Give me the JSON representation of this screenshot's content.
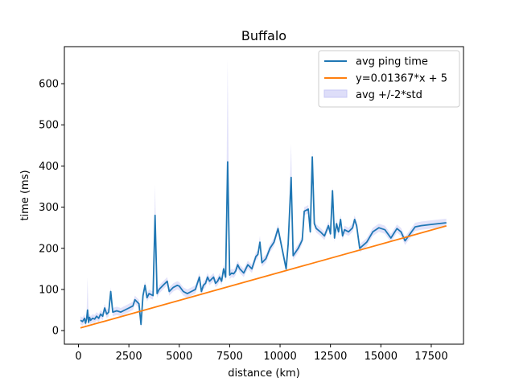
{
  "chart_data": {
    "type": "line",
    "title": "Buffalo",
    "xlabel": "distance (km)",
    "ylabel": "time (ms)",
    "xlim": [
      -700,
      19100
    ],
    "ylim": [
      -33,
      690
    ],
    "xticks": [
      0,
      2500,
      5000,
      7500,
      10000,
      12500,
      15000,
      17500
    ],
    "yticks": [
      0,
      100,
      200,
      300,
      400,
      500,
      600
    ],
    "grid": false,
    "legend_position": "top-right",
    "colors": {
      "avg": "#1f77b4",
      "fit": "#ff7f0e",
      "band": "#c8c8f5"
    },
    "legend": [
      "avg ping time",
      "y=0.01367*x + 5",
      "avg +/-2*std"
    ],
    "series": [
      {
        "name": "avg ping time",
        "kind": "line",
        "points": [
          [
            100,
            25
          ],
          [
            200,
            22
          ],
          [
            300,
            30
          ],
          [
            350,
            18
          ],
          [
            400,
            28
          ],
          [
            450,
            50
          ],
          [
            500,
            20
          ],
          [
            550,
            32
          ],
          [
            600,
            25
          ],
          [
            700,
            30
          ],
          [
            800,
            28
          ],
          [
            900,
            35
          ],
          [
            1000,
            30
          ],
          [
            1100,
            40
          ],
          [
            1200,
            35
          ],
          [
            1300,
            55
          ],
          [
            1400,
            40
          ],
          [
            1500,
            45
          ],
          [
            1600,
            95
          ],
          [
            1700,
            45
          ],
          [
            1900,
            48
          ],
          [
            2100,
            45
          ],
          [
            2300,
            50
          ],
          [
            2500,
            55
          ],
          [
            2700,
            60
          ],
          [
            2800,
            75
          ],
          [
            2900,
            70
          ],
          [
            3000,
            65
          ],
          [
            3100,
            15
          ],
          [
            3200,
            85
          ],
          [
            3300,
            110
          ],
          [
            3400,
            80
          ],
          [
            3500,
            90
          ],
          [
            3700,
            85
          ],
          [
            3800,
            280
          ],
          [
            3900,
            90
          ],
          [
            4000,
            100
          ],
          [
            4200,
            110
          ],
          [
            4400,
            120
          ],
          [
            4500,
            95
          ],
          [
            4700,
            105
          ],
          [
            4900,
            110
          ],
          [
            5000,
            108
          ],
          [
            5200,
            95
          ],
          [
            5400,
            90
          ],
          [
            5600,
            95
          ],
          [
            5800,
            100
          ],
          [
            6000,
            130
          ],
          [
            6100,
            95
          ],
          [
            6200,
            110
          ],
          [
            6300,
            115
          ],
          [
            6400,
            130
          ],
          [
            6500,
            120
          ],
          [
            6600,
            125
          ],
          [
            6700,
            130
          ],
          [
            6800,
            115
          ],
          [
            6900,
            120
          ],
          [
            7000,
            130
          ],
          [
            7100,
            120
          ],
          [
            7200,
            150
          ],
          [
            7300,
            130
          ],
          [
            7400,
            410
          ],
          [
            7500,
            135
          ],
          [
            7600,
            140
          ],
          [
            7700,
            138
          ],
          [
            7800,
            145
          ],
          [
            7900,
            160
          ],
          [
            8000,
            150
          ],
          [
            8200,
            140
          ],
          [
            8400,
            160
          ],
          [
            8600,
            150
          ],
          [
            8800,
            180
          ],
          [
            8900,
            185
          ],
          [
            9000,
            215
          ],
          [
            9100,
            165
          ],
          [
            9300,
            175
          ],
          [
            9500,
            200
          ],
          [
            9700,
            215
          ],
          [
            9900,
            248
          ],
          [
            10300,
            150
          ],
          [
            10400,
            210
          ],
          [
            10550,
            372
          ],
          [
            10650,
            182
          ],
          [
            10900,
            200
          ],
          [
            11100,
            220
          ],
          [
            11200,
            290
          ],
          [
            11400,
            295
          ],
          [
            11500,
            240
          ],
          [
            11600,
            422
          ],
          [
            11700,
            260
          ],
          [
            11800,
            248
          ],
          [
            12000,
            240
          ],
          [
            12200,
            230
          ],
          [
            12400,
            255
          ],
          [
            12500,
            235
          ],
          [
            12600,
            340
          ],
          [
            12700,
            225
          ],
          [
            12800,
            260
          ],
          [
            12900,
            240
          ],
          [
            13000,
            270
          ],
          [
            13100,
            230
          ],
          [
            13200,
            245
          ],
          [
            13400,
            240
          ],
          [
            13600,
            250
          ],
          [
            13700,
            270
          ],
          [
            13800,
            255
          ],
          [
            13950,
            200
          ],
          [
            14300,
            215
          ],
          [
            14600,
            240
          ],
          [
            14900,
            250
          ],
          [
            15200,
            245
          ],
          [
            15500,
            225
          ],
          [
            15800,
            248
          ],
          [
            16000,
            240
          ],
          [
            16200,
            218
          ],
          [
            16700,
            252
          ],
          [
            17000,
            255
          ],
          [
            17500,
            258
          ],
          [
            18250,
            262
          ]
        ]
      },
      {
        "name": "y=0.01367*x + 5",
        "kind": "line",
        "points": [
          [
            100,
            6.4
          ],
          [
            18250,
            254.5
          ]
        ]
      },
      {
        "name": "avg +/-2*std",
        "kind": "band",
        "spikes": [
          [
            450,
            130
          ],
          [
            1600,
            100
          ],
          [
            3800,
            355
          ],
          [
            7400,
            658
          ],
          [
            9000,
            230
          ],
          [
            10550,
            455
          ],
          [
            11600,
            438
          ],
          [
            12600,
            345
          ],
          [
            13000,
            275
          ]
        ],
        "halfwidth": 10
      }
    ]
  }
}
